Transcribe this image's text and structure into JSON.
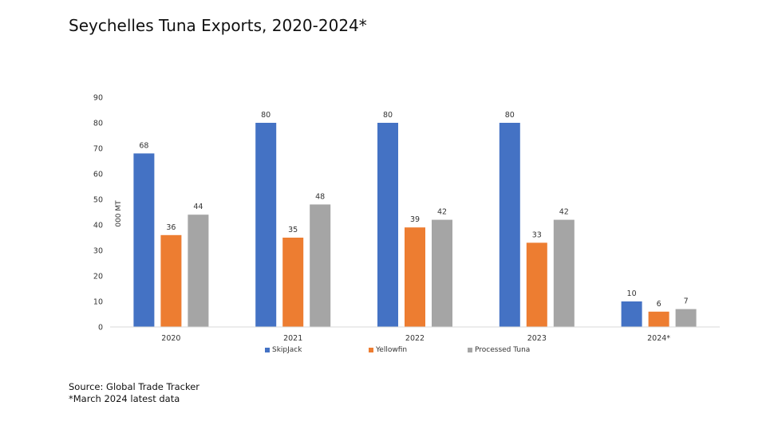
{
  "title": "Seychelles Tuna Exports, 2020-2024*",
  "source_lines": [
    "Source: Global Trade Tracker",
    "*March 2024 latest data"
  ],
  "colors": {
    "skipjack": "#4472C4",
    "yellowfin": "#ED7D31",
    "processed": "#A5A5A5",
    "axis": "#D9D9D9"
  },
  "chart_data": {
    "type": "bar",
    "ylabel": "000 MT",
    "ylim": [
      0,
      90
    ],
    "yticks": [
      0,
      10,
      20,
      30,
      40,
      50,
      60,
      70,
      80,
      90
    ],
    "categories": [
      "2020",
      "2021",
      "2022",
      "2023",
      "2024*"
    ],
    "series": [
      {
        "name": "SkipJack",
        "values": [
          68,
          80,
          80,
          80,
          10
        ],
        "labels": [
          "68",
          "80",
          "80",
          "80",
          "10"
        ]
      },
      {
        "name": "Yellowfin",
        "values": [
          36,
          35,
          39,
          33,
          6
        ],
        "labels": [
          "36",
          "35",
          "39",
          "33",
          "6"
        ]
      },
      {
        "name": "Processed Tuna",
        "values": [
          44,
          48,
          42,
          42,
          7
        ],
        "labels": [
          "44",
          "48",
          "42",
          "42",
          "7"
        ]
      }
    ],
    "legend": "bottom",
    "grid": false
  }
}
